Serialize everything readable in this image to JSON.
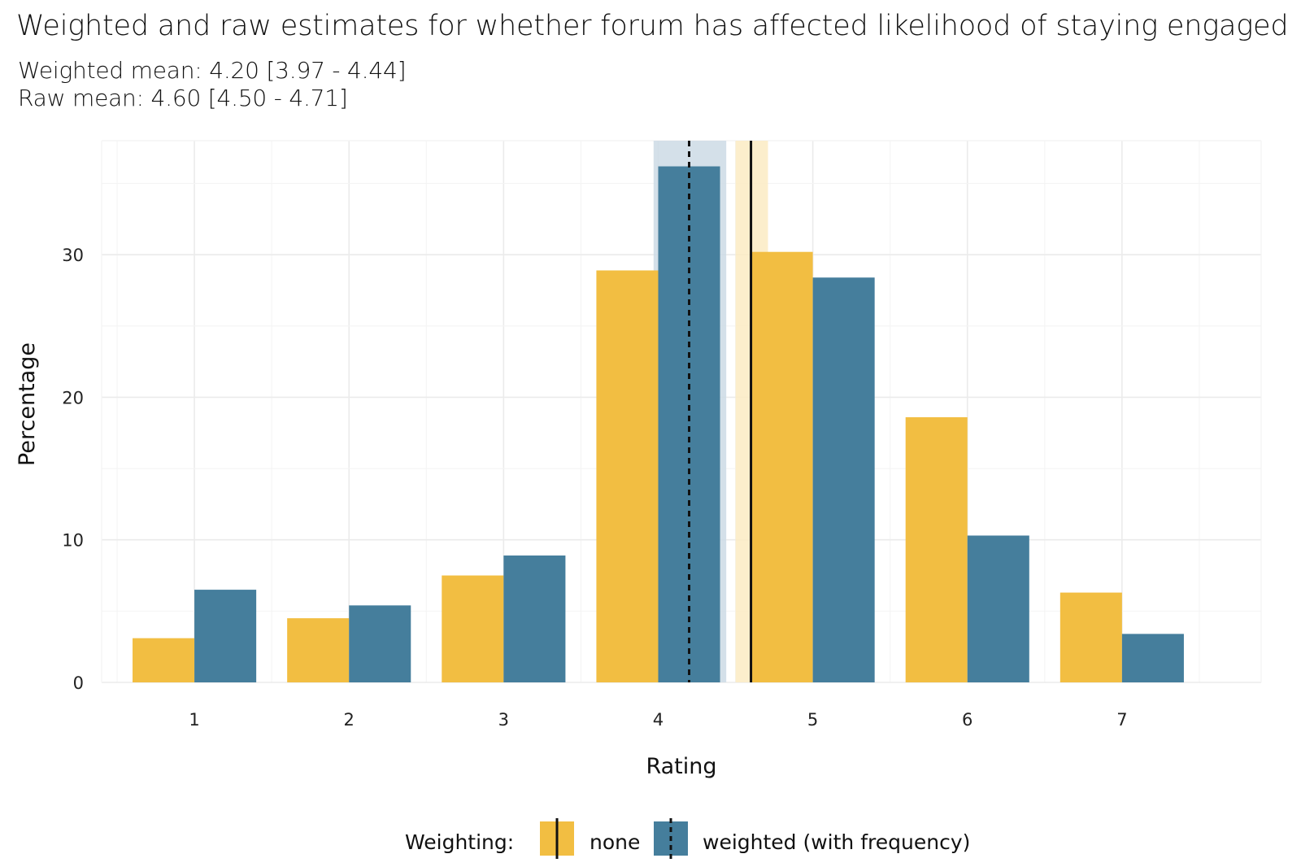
{
  "chart_data": {
    "type": "bar",
    "title": "Weighted and raw estimates for whether forum has affected likelihood of staying engaged",
    "subtitle_lines": [
      "Weighted mean: 4.20 [3.97 - 4.44]",
      "Raw mean: 4.60 [4.50 - 4.71]"
    ],
    "xlabel": "Rating",
    "ylabel": "Percentage",
    "categories": [
      "1",
      "2",
      "3",
      "4",
      "5",
      "6",
      "7"
    ],
    "xlim": [
      0.4,
      7.9
    ],
    "ylim": [
      0,
      38
    ],
    "yticks": [
      0,
      10,
      20,
      30
    ],
    "yticks_labels": [
      "0",
      "10",
      "20",
      "30"
    ],
    "series": [
      {
        "name": "none",
        "color": "#F2BE42",
        "values": [
          3.1,
          4.5,
          7.5,
          28.9,
          30.2,
          18.6,
          6.3
        ]
      },
      {
        "name": "weighted (with frequency)",
        "color": "#457E9C",
        "values": [
          6.5,
          5.4,
          8.9,
          36.2,
          28.4,
          10.3,
          3.4
        ]
      }
    ],
    "reference_lines": [
      {
        "series": "none",
        "mean": 4.6,
        "ci": [
          4.5,
          4.71
        ],
        "style": "solid",
        "band_color": "#FCEBC3"
      },
      {
        "series": "weighted (with frequency)",
        "mean": 4.2,
        "ci": [
          3.97,
          4.44
        ],
        "style": "dashed",
        "band_color": "#CCDBE5"
      }
    ],
    "legend": {
      "title": "Weighting:",
      "position": "bottom",
      "entries": [
        "none",
        "weighted (with frequency)"
      ]
    },
    "grid": true
  }
}
